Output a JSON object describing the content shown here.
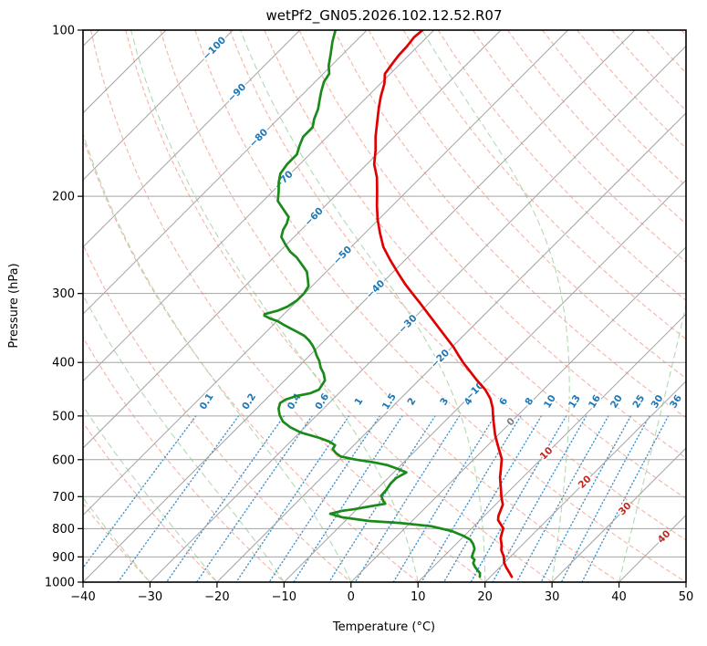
{
  "title": "wetPf2_GN05.2026.102.12.52.R07",
  "axes": {
    "x_label": "Temperature (°C)",
    "y_label": "Pressure (hPa)",
    "x_ticks": [
      {
        "v": -40,
        "label": "−40"
      },
      {
        "v": -30,
        "label": "−30"
      },
      {
        "v": -20,
        "label": "−20"
      },
      {
        "v": -10,
        "label": "−10"
      },
      {
        "v": 0,
        "label": "0"
      },
      {
        "v": 10,
        "label": "10"
      },
      {
        "v": 20,
        "label": "20"
      },
      {
        "v": 30,
        "label": "30"
      },
      {
        "v": 40,
        "label": "40"
      },
      {
        "v": 50,
        "label": "50"
      }
    ],
    "y_ticks": [
      {
        "v": 100,
        "label": "100"
      },
      {
        "v": 200,
        "label": "200"
      },
      {
        "v": 300,
        "label": "300"
      },
      {
        "v": 400,
        "label": "400"
      },
      {
        "v": 500,
        "label": "500"
      },
      {
        "v": 600,
        "label": "600"
      },
      {
        "v": 700,
        "label": "700"
      },
      {
        "v": 800,
        "label": "800"
      },
      {
        "v": 900,
        "label": "900"
      },
      {
        "v": 1000,
        "label": "1000"
      }
    ]
  },
  "chart_data": {
    "type": "skewt_log_p",
    "x_range_c": [
      -40,
      50
    ],
    "pressure_range_hpa": [
      100,
      1000
    ],
    "skew": "45deg_isotherms",
    "grid": true,
    "isobars_hpa": [
      100,
      200,
      300,
      400,
      500,
      600,
      700,
      800,
      900,
      1000
    ],
    "isotherms_c": {
      "from": -130,
      "to": 50,
      "step": 10
    },
    "isotherm_labels": [
      {
        "t_c": -100,
        "at_hpa": 108,
        "label": "−100"
      },
      {
        "t_c": -90,
        "at_hpa": 130,
        "label": "−90"
      },
      {
        "t_c": -80,
        "at_hpa": 157,
        "label": "−80"
      },
      {
        "t_c": -70,
        "at_hpa": 187,
        "label": "−70"
      },
      {
        "t_c": -60,
        "at_hpa": 218,
        "label": "−60"
      },
      {
        "t_c": -50,
        "at_hpa": 256,
        "label": "−50"
      },
      {
        "t_c": -40,
        "at_hpa": 295,
        "label": "−40"
      },
      {
        "t_c": -30,
        "at_hpa": 341,
        "label": "−30"
      },
      {
        "t_c": -20,
        "at_hpa": 394,
        "label": "−20"
      },
      {
        "t_c": -10,
        "at_hpa": 451,
        "label": "−10"
      },
      {
        "t_c": 0,
        "at_hpa": 513,
        "label": "0"
      },
      {
        "t_c": 10,
        "at_hpa": 585,
        "label": "10"
      },
      {
        "t_c": 20,
        "at_hpa": 659,
        "label": "20"
      },
      {
        "t_c": 30,
        "at_hpa": 737,
        "label": "30"
      },
      {
        "t_c": 40,
        "at_hpa": 828,
        "label": "40"
      }
    ],
    "dry_adiabats_theta_c": {
      "from": -40,
      "to": 190,
      "step": 10
    },
    "moist_adiabats_start_c": {
      "from": -40,
      "to": 60,
      "step": 10
    },
    "mixing_ratio_g_kg": [
      {
        "w": 0.1,
        "label": "0.1"
      },
      {
        "w": 0.2,
        "label": "0.2"
      },
      {
        "w": 0.4,
        "label": "0.4"
      },
      {
        "w": 0.6,
        "label": "0.6"
      },
      {
        "w": 1,
        "label": "1"
      },
      {
        "w": 1.5,
        "label": "1.5"
      },
      {
        "w": 2,
        "label": "2"
      },
      {
        "w": 3,
        "label": "3"
      },
      {
        "w": 4,
        "label": "4"
      },
      {
        "w": 6,
        "label": "6"
      },
      {
        "w": 8,
        "label": "8"
      },
      {
        "w": 10,
        "label": "10"
      },
      {
        "w": 13,
        "label": "13"
      },
      {
        "w": 16,
        "label": "16"
      },
      {
        "w": 20,
        "label": "20"
      },
      {
        "w": 25,
        "label": "25"
      },
      {
        "w": 30,
        "label": "30"
      },
      {
        "w": 36,
        "label": "36"
      }
    ],
    "mixing_ratio_line_p_range": [
      500,
      1000
    ],
    "mixing_ratio_label_hpa": 471,
    "temperature_profile_p_t": [
      [
        100,
        -71.7
      ],
      [
        103,
        -71.9
      ],
      [
        107,
        -71.6
      ],
      [
        111,
        -71.5
      ],
      [
        115,
        -71.2
      ],
      [
        120,
        -70.8
      ],
      [
        125,
        -69.4
      ],
      [
        132,
        -68.0
      ],
      [
        138,
        -66.7
      ],
      [
        147,
        -64.7
      ],
      [
        156,
        -62.8
      ],
      [
        165,
        -60.8
      ],
      [
        175,
        -58.9
      ],
      [
        185,
        -56.5
      ],
      [
        196,
        -54.4
      ],
      [
        208,
        -52.3
      ],
      [
        220,
        -50.2
      ],
      [
        233,
        -47.8
      ],
      [
        247,
        -45.2
      ],
      [
        261,
        -42.2
      ],
      [
        276,
        -39.0
      ],
      [
        288,
        -36.5
      ],
      [
        300,
        -33.9
      ],
      [
        311,
        -31.6
      ],
      [
        322,
        -29.4
      ],
      [
        341,
        -25.8
      ],
      [
        361,
        -22.2
      ],
      [
        375,
        -19.8
      ],
      [
        389,
        -17.7
      ],
      [
        401,
        -15.9
      ],
      [
        415,
        -13.7
      ],
      [
        431,
        -11.3
      ],
      [
        448,
        -8.7
      ],
      [
        465,
        -6.6
      ],
      [
        483,
        -4.9
      ],
      [
        500,
        -3.6
      ],
      [
        522,
        -1.9
      ],
      [
        542,
        -0.4
      ],
      [
        569,
        1.8
      ],
      [
        598,
        4.1
      ],
      [
        626,
        5.6
      ],
      [
        646,
        6.6
      ],
      [
        668,
        7.9
      ],
      [
        702,
        9.8
      ],
      [
        724,
        11.1
      ],
      [
        758,
        12.1
      ],
      [
        772,
        12.7
      ],
      [
        799,
        14.7
      ],
      [
        818,
        15.3
      ],
      [
        833,
        15.8
      ],
      [
        856,
        16.9
      ],
      [
        876,
        17.7
      ],
      [
        899,
        19.0
      ],
      [
        923,
        20.0
      ],
      [
        941,
        21.0
      ],
      [
        959,
        22.1
      ],
      [
        978,
        23.2
      ]
    ],
    "dewpoint_profile_p_t": [
      [
        100,
        -84.7
      ],
      [
        105,
        -83.4
      ],
      [
        111,
        -81.7
      ],
      [
        116,
        -80.4
      ],
      [
        120,
        -79.1
      ],
      [
        124,
        -78.7
      ],
      [
        129,
        -77.7
      ],
      [
        134,
        -76.6
      ],
      [
        139,
        -75.5
      ],
      [
        145,
        -74.6
      ],
      [
        150,
        -73.6
      ],
      [
        156,
        -73.6
      ],
      [
        162,
        -72.8
      ],
      [
        168,
        -71.9
      ],
      [
        175,
        -71.9
      ],
      [
        182,
        -71.5
      ],
      [
        189,
        -70.4
      ],
      [
        196,
        -69.1
      ],
      [
        204,
        -67.8
      ],
      [
        212,
        -65.5
      ],
      [
        218,
        -63.8
      ],
      [
        224,
        -63.1
      ],
      [
        230,
        -62.7
      ],
      [
        237,
        -61.9
      ],
      [
        244,
        -60.3
      ],
      [
        252,
        -58.4
      ],
      [
        258,
        -56.6
      ],
      [
        266,
        -54.7
      ],
      [
        274,
        -52.9
      ],
      [
        283,
        -51.6
      ],
      [
        291,
        -50.5
      ],
      [
        300,
        -50.1
      ],
      [
        309,
        -50.1
      ],
      [
        317,
        -50.6
      ],
      [
        322,
        -51.4
      ],
      [
        327,
        -52.9
      ],
      [
        329,
        -52.7
      ],
      [
        333,
        -51.4
      ],
      [
        337,
        -49.8
      ],
      [
        342,
        -48.4
      ],
      [
        347,
        -46.9
      ],
      [
        352,
        -45.4
      ],
      [
        358,
        -43.7
      ],
      [
        365,
        -42.3
      ],
      [
        373,
        -41.0
      ],
      [
        380,
        -40.0
      ],
      [
        389,
        -38.9
      ],
      [
        397,
        -37.8
      ],
      [
        409,
        -36.5
      ],
      [
        419,
        -35.2
      ],
      [
        431,
        -34.0
      ],
      [
        448,
        -33.5
      ],
      [
        455,
        -34.3
      ],
      [
        460,
        -35.9
      ],
      [
        467,
        -37.0
      ],
      [
        474,
        -37.3
      ],
      [
        485,
        -36.7
      ],
      [
        498,
        -35.6
      ],
      [
        512,
        -34.1
      ],
      [
        524,
        -32.2
      ],
      [
        536,
        -29.8
      ],
      [
        548,
        -26.2
      ],
      [
        557,
        -24.1
      ],
      [
        565,
        -22.8
      ],
      [
        574,
        -22.6
      ],
      [
        583,
        -21.6
      ],
      [
        592,
        -20.3
      ],
      [
        600,
        -17.5
      ],
      [
        607,
        -14.4
      ],
      [
        614,
        -12.0
      ],
      [
        624,
        -9.8
      ],
      [
        633,
        -8.1
      ],
      [
        648,
        -8.8
      ],
      [
        663,
        -8.8
      ],
      [
        681,
        -8.5
      ],
      [
        697,
        -8.4
      ],
      [
        713,
        -7.3
      ],
      [
        721,
        -6.6
      ],
      [
        729,
        -8.5
      ],
      [
        738,
        -10.5
      ],
      [
        743,
        -12.0
      ],
      [
        752,
        -13.3
      ],
      [
        763,
        -11.0
      ],
      [
        775,
        -6.4
      ],
      [
        781,
        -1.6
      ],
      [
        792,
        3.6
      ],
      [
        808,
        7.4
      ],
      [
        824,
        9.8
      ],
      [
        838,
        11.5
      ],
      [
        854,
        12.6
      ],
      [
        871,
        13.5
      ],
      [
        887,
        13.9
      ],
      [
        901,
        14.3
      ],
      [
        911,
        15.1
      ],
      [
        924,
        15.4
      ],
      [
        938,
        16.2
      ],
      [
        953,
        17.2
      ],
      [
        963,
        17.9
      ],
      [
        977,
        18.4
      ]
    ],
    "legend": null,
    "colors": {
      "temperature_curve": "#e00000",
      "dewpoint_curve": "#1a8a1a",
      "isotherm_line": "#a3a3a3",
      "isobar_line": "#a3a3a3",
      "dry_adiabat": "#f2a18f",
      "moist_adiabat": "#a8d6a8",
      "mixing_ratio": "#4291c8",
      "neg_label": "#1f77b4",
      "pos_label": "#c4281e",
      "zero_label": "#7f7f7f"
    }
  }
}
